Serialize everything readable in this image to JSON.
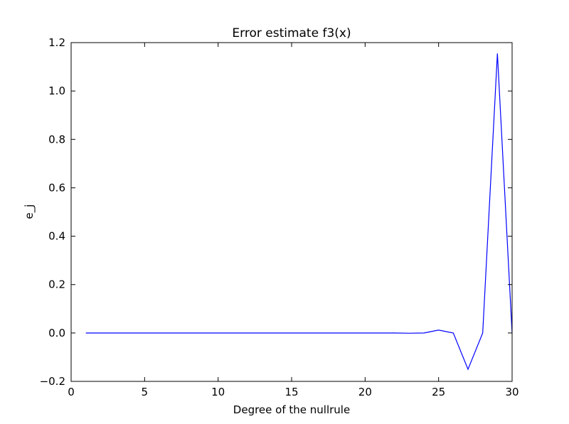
{
  "chart_data": {
    "type": "line",
    "title": "Error estimate f3(x)",
    "xlabel": "Degree of the nullrule",
    "ylabel": "e_j",
    "xlim": [
      0,
      30
    ],
    "ylim": [
      -0.2,
      1.2
    ],
    "xticks": [
      0,
      5,
      10,
      15,
      20,
      25,
      30
    ],
    "xtick_labels": [
      "0",
      "5",
      "10",
      "15",
      "20",
      "25",
      "30"
    ],
    "yticks": [
      -0.2,
      0.0,
      0.2,
      0.4,
      0.6,
      0.8,
      1.0,
      1.2
    ],
    "ytick_labels": [
      "−0.2",
      "0.0",
      "0.2",
      "0.4",
      "0.6",
      "0.8",
      "1.0",
      "1.2"
    ],
    "grid": false,
    "series": [
      {
        "color": "#0000ff",
        "x": [
          1,
          2,
          3,
          4,
          5,
          6,
          7,
          8,
          9,
          10,
          11,
          12,
          13,
          14,
          15,
          16,
          17,
          18,
          19,
          20,
          21,
          22,
          23,
          24,
          25,
          26,
          27,
          28,
          29,
          30
        ],
        "y": [
          0,
          0,
          0,
          0,
          0,
          0,
          0,
          0,
          0,
          0,
          0,
          0,
          0,
          0,
          0,
          0,
          0,
          0,
          0,
          0,
          0,
          0,
          -0.001,
          0,
          0.012,
          0,
          -0.15,
          0,
          1.155,
          0
        ]
      }
    ]
  }
}
